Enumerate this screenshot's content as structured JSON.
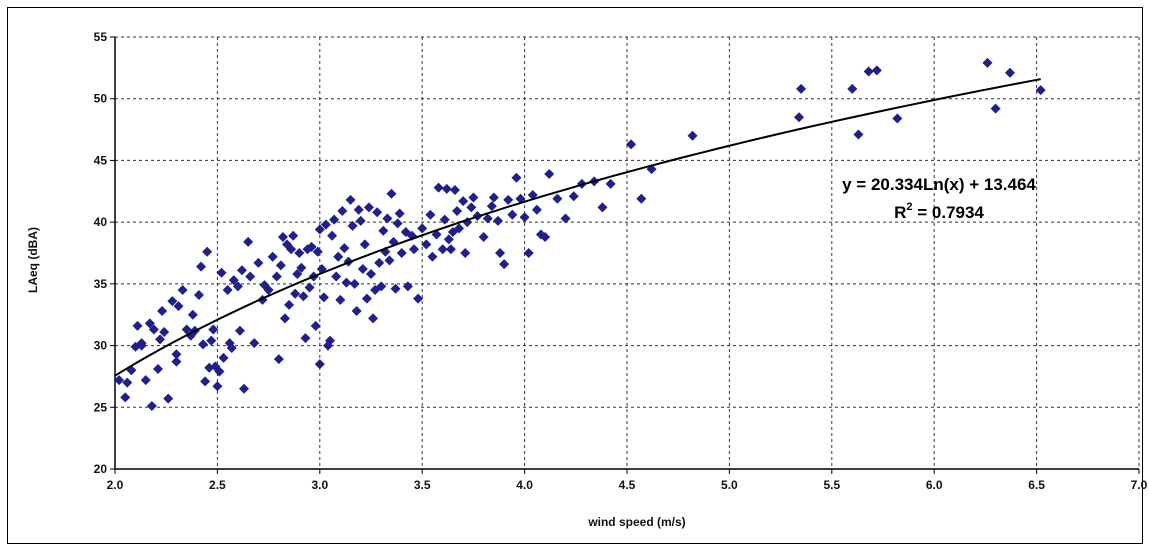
{
  "chart_data": {
    "type": "scatter",
    "title": "",
    "xlabel": "wind speed (m/s)",
    "ylabel": "LAeq (dBA)",
    "xlim": [
      2.0,
      7.0
    ],
    "ylim": [
      20,
      55
    ],
    "xticks": [
      "2.0",
      "2.5",
      "3.0",
      "3.5",
      "4.0",
      "4.5",
      "5.0",
      "5.5",
      "6.0",
      "6.5",
      "7.0"
    ],
    "yticks": [
      "20",
      "25",
      "30",
      "35",
      "40",
      "45",
      "50",
      "55"
    ],
    "grid": true,
    "legend": "none",
    "marker_color": "#1f1f8f",
    "trend_color": "#000000",
    "annotations": {
      "equation_prefix": "y = 20.334Ln(x) + 13.464",
      "r2_base": "R",
      "r2_exp": "2",
      "r2_value": " = 0.7934"
    },
    "trendline": {
      "type": "logarithmic",
      "a": 20.334,
      "b": 13.464,
      "x_range": [
        2.0,
        6.52
      ]
    },
    "points": [
      [
        2.02,
        27.2
      ],
      [
        2.05,
        25.8
      ],
      [
        2.06,
        27.0
      ],
      [
        2.08,
        28.0
      ],
      [
        2.1,
        29.9
      ],
      [
        2.11,
        31.6
      ],
      [
        2.13,
        30.2
      ],
      [
        2.13,
        30.0
      ],
      [
        2.15,
        27.2
      ],
      [
        2.17,
        31.8
      ],
      [
        2.18,
        25.1
      ],
      [
        2.19,
        31.3
      ],
      [
        2.21,
        28.1
      ],
      [
        2.22,
        30.5
      ],
      [
        2.23,
        32.8
      ],
      [
        2.24,
        31.1
      ],
      [
        2.26,
        25.7
      ],
      [
        2.28,
        33.6
      ],
      [
        2.3,
        29.3
      ],
      [
        2.3,
        28.7
      ],
      [
        2.31,
        33.2
      ],
      [
        2.33,
        34.5
      ],
      [
        2.35,
        31.3
      ],
      [
        2.37,
        30.8
      ],
      [
        2.38,
        32.5
      ],
      [
        2.39,
        31.2
      ],
      [
        2.41,
        34.1
      ],
      [
        2.42,
        36.4
      ],
      [
        2.43,
        30.1
      ],
      [
        2.44,
        27.1
      ],
      [
        2.45,
        37.6
      ],
      [
        2.46,
        28.2
      ],
      [
        2.47,
        30.4
      ],
      [
        2.48,
        31.3
      ],
      [
        2.49,
        28.3
      ],
      [
        2.5,
        26.7
      ],
      [
        2.51,
        27.9
      ],
      [
        2.52,
        35.9
      ],
      [
        2.53,
        29.0
      ],
      [
        2.55,
        34.5
      ],
      [
        2.56,
        30.2
      ],
      [
        2.57,
        29.8
      ],
      [
        2.58,
        35.3
      ],
      [
        2.6,
        34.8
      ],
      [
        2.61,
        31.2
      ],
      [
        2.62,
        36.1
      ],
      [
        2.63,
        26.5
      ],
      [
        2.65,
        38.4
      ],
      [
        2.66,
        35.6
      ],
      [
        2.68,
        30.2
      ],
      [
        2.7,
        36.7
      ],
      [
        2.72,
        33.7
      ],
      [
        2.73,
        34.9
      ],
      [
        2.75,
        34.5
      ],
      [
        2.77,
        37.2
      ],
      [
        2.79,
        35.6
      ],
      [
        2.8,
        28.9
      ],
      [
        2.81,
        36.5
      ],
      [
        2.82,
        38.8
      ],
      [
        2.83,
        32.2
      ],
      [
        2.84,
        38.2
      ],
      [
        2.85,
        33.3
      ],
      [
        2.86,
        37.8
      ],
      [
        2.87,
        38.9
      ],
      [
        2.88,
        34.2
      ],
      [
        2.89,
        35.8
      ],
      [
        2.9,
        37.5
      ],
      [
        2.91,
        36.3
      ],
      [
        2.92,
        34.0
      ],
      [
        2.93,
        30.6
      ],
      [
        2.94,
        37.8
      ],
      [
        2.95,
        34.7
      ],
      [
        2.96,
        38.0
      ],
      [
        2.97,
        35.6
      ],
      [
        2.98,
        31.6
      ],
      [
        2.99,
        37.6
      ],
      [
        3.0,
        28.5
      ],
      [
        3.0,
        39.4
      ],
      [
        3.01,
        36.2
      ],
      [
        3.02,
        33.9
      ],
      [
        3.03,
        39.8
      ],
      [
        3.04,
        30.0
      ],
      [
        3.05,
        30.4
      ],
      [
        3.06,
        38.9
      ],
      [
        3.07,
        40.2
      ],
      [
        3.08,
        35.6
      ],
      [
        3.09,
        37.2
      ],
      [
        3.1,
        33.7
      ],
      [
        3.11,
        40.9
      ],
      [
        3.12,
        37.9
      ],
      [
        3.13,
        35.1
      ],
      [
        3.14,
        36.8
      ],
      [
        3.15,
        41.8
      ],
      [
        3.16,
        39.7
      ],
      [
        3.17,
        35.0
      ],
      [
        3.18,
        32.8
      ],
      [
        3.19,
        41.0
      ],
      [
        3.2,
        40.1
      ],
      [
        3.21,
        36.2
      ],
      [
        3.22,
        38.2
      ],
      [
        3.23,
        33.8
      ],
      [
        3.24,
        41.2
      ],
      [
        3.25,
        35.8
      ],
      [
        3.26,
        32.2
      ],
      [
        3.27,
        34.5
      ],
      [
        3.28,
        40.8
      ],
      [
        3.29,
        36.7
      ],
      [
        3.3,
        34.8
      ],
      [
        3.31,
        39.3
      ],
      [
        3.32,
        37.6
      ],
      [
        3.33,
        40.3
      ],
      [
        3.34,
        36.9
      ],
      [
        3.35,
        42.3
      ],
      [
        3.36,
        38.4
      ],
      [
        3.37,
        34.6
      ],
      [
        3.38,
        39.9
      ],
      [
        3.39,
        40.7
      ],
      [
        3.4,
        37.5
      ],
      [
        3.42,
        39.2
      ],
      [
        3.43,
        34.8
      ],
      [
        3.45,
        38.9
      ],
      [
        3.46,
        37.8
      ],
      [
        3.48,
        33.8
      ],
      [
        3.5,
        39.5
      ],
      [
        3.52,
        38.2
      ],
      [
        3.54,
        40.6
      ],
      [
        3.55,
        37.2
      ],
      [
        3.57,
        39.0
      ],
      [
        3.58,
        42.8
      ],
      [
        3.6,
        37.8
      ],
      [
        3.61,
        40.2
      ],
      [
        3.62,
        42.7
      ],
      [
        3.63,
        38.6
      ],
      [
        3.64,
        37.8
      ],
      [
        3.65,
        39.2
      ],
      [
        3.66,
        42.6
      ],
      [
        3.67,
        40.9
      ],
      [
        3.68,
        39.5
      ],
      [
        3.7,
        41.7
      ],
      [
        3.71,
        37.5
      ],
      [
        3.72,
        40.0
      ],
      [
        3.74,
        41.2
      ],
      [
        3.75,
        42.0
      ],
      [
        3.77,
        40.5
      ],
      [
        3.8,
        38.8
      ],
      [
        3.82,
        40.3
      ],
      [
        3.84,
        41.3
      ],
      [
        3.85,
        42.0
      ],
      [
        3.87,
        40.1
      ],
      [
        3.88,
        37.5
      ],
      [
        3.9,
        36.6
      ],
      [
        3.92,
        41.8
      ],
      [
        3.94,
        40.6
      ],
      [
        3.96,
        43.6
      ],
      [
        3.98,
        41.9
      ],
      [
        4.0,
        40.4
      ],
      [
        4.02,
        37.5
      ],
      [
        4.04,
        42.2
      ],
      [
        4.06,
        41.0
      ],
      [
        4.08,
        39.0
      ],
      [
        4.1,
        38.8
      ],
      [
        4.12,
        43.9
      ],
      [
        4.16,
        41.9
      ],
      [
        4.2,
        40.3
      ],
      [
        4.24,
        42.1
      ],
      [
        4.28,
        43.1
      ],
      [
        4.34,
        43.3
      ],
      [
        4.38,
        41.2
      ],
      [
        4.42,
        43.1
      ],
      [
        4.52,
        46.3
      ],
      [
        4.57,
        41.9
      ],
      [
        4.62,
        44.3
      ],
      [
        4.82,
        47.0
      ],
      [
        5.34,
        48.5
      ],
      [
        5.35,
        50.8
      ],
      [
        5.6,
        50.8
      ],
      [
        5.63,
        47.1
      ],
      [
        5.68,
        52.2
      ],
      [
        5.72,
        52.3
      ],
      [
        5.82,
        48.4
      ],
      [
        6.26,
        52.9
      ],
      [
        6.3,
        49.2
      ],
      [
        6.37,
        52.1
      ],
      [
        6.52,
        50.7
      ]
    ]
  }
}
